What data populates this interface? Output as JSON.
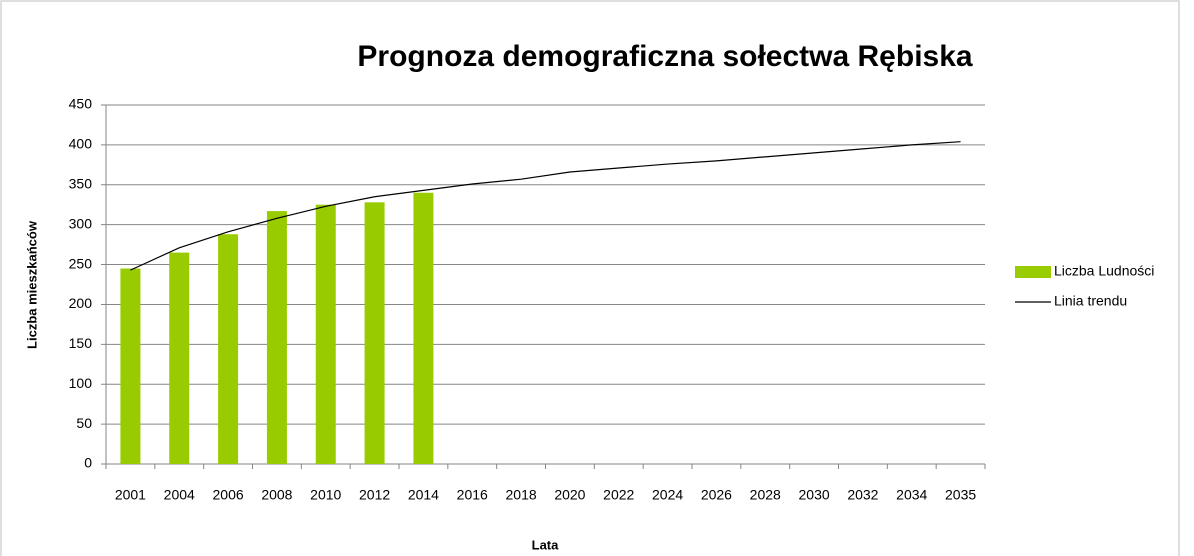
{
  "chart_data": {
    "type": "bar",
    "title": "Prognoza demograficzna sołectwa Rębiska",
    "x_label": "Lata",
    "y_label": "Liczba mieszkańców",
    "categories": [
      "2001",
      "2004",
      "2006",
      "2008",
      "2010",
      "2012",
      "2014",
      "2016",
      "2018",
      "2020",
      "2022",
      "2024",
      "2026",
      "2028",
      "2030",
      "2032",
      "2034",
      "2035"
    ],
    "series": [
      {
        "name": "Liczba Ludności",
        "type": "bar",
        "color": "#99cc00",
        "values": [
          245,
          265,
          288,
          317,
          325,
          328,
          340,
          null,
          null,
          null,
          null,
          null,
          null,
          null,
          null,
          null,
          null,
          null
        ]
      },
      {
        "name": "Linia trendu",
        "type": "line",
        "color": "#000000",
        "values": [
          243,
          271,
          291,
          308,
          323,
          335,
          343,
          351,
          357,
          366,
          371,
          376,
          380,
          385,
          390,
          395,
          400,
          404
        ]
      }
    ],
    "ylim": [
      0,
      450
    ],
    "yticks": [
      0,
      50,
      100,
      150,
      200,
      250,
      300,
      350,
      400,
      450
    ],
    "grid": true,
    "legend": "right"
  }
}
